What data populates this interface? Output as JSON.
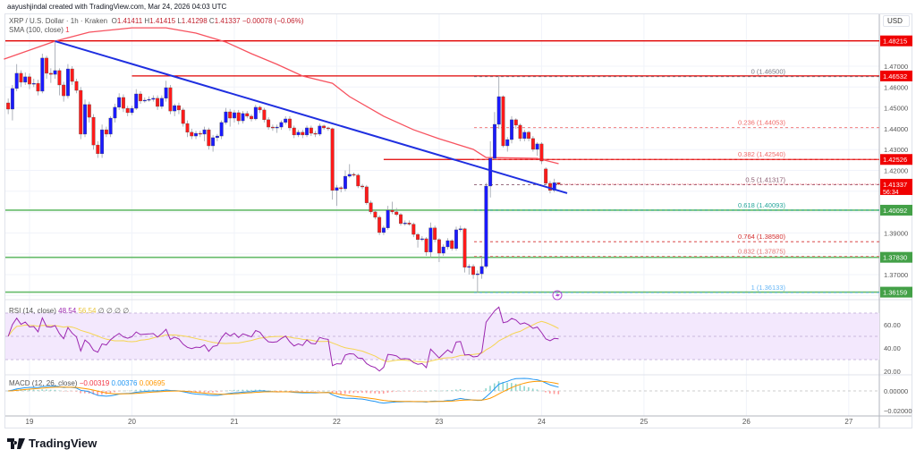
{
  "credit": "aayushjindal created with TradingView.com, Mar 24, 2026 04:03 UTC",
  "legend": {
    "symbol": "XRP / U.S. Dollar · 1h · Kraken",
    "open_label": "O",
    "open": "1.41411",
    "high_label": "H",
    "high": "1.41415",
    "low_label": "L",
    "low": "1.41298",
    "close_label": "C",
    "close": "1.41337",
    "change": "−0.00078 (−0.06%)"
  },
  "sma_legend": {
    "label": "SMA (100, close)",
    "value": "1"
  },
  "rsi_legend": {
    "label": "RSI (14, close)",
    "value": "48.54",
    "ma": "56.54",
    "extra": "∅ ∅ ∅ ∅"
  },
  "macd_legend": {
    "label": "MACD (12, 26, close)",
    "hist": "−0.00319",
    "macd": "0.00376",
    "signal": "0.00695"
  },
  "currency": "USD",
  "brand": "TradingView",
  "countdown": "56:34",
  "colors": {
    "up": "#1a1aff",
    "down": "#ff1a1a",
    "sma": "#f7525f",
    "trend": "#1f2fe0",
    "resistance": "#e00000",
    "support": "#66bb6a",
    "rsi": "#9c27b0",
    "rsi_ma": "#f5d451",
    "macd": "#2196f3",
    "signal": "#ff9800"
  },
  "chart_data": {
    "type": "candlestick",
    "interval": "1h",
    "first_candle": "2026-03-18T19:00",
    "x_ticks": [
      "19",
      "20",
      "21",
      "22",
      "23",
      "24",
      "25",
      "26",
      "27"
    ],
    "y_ticks": [
      "1.47000",
      "1.46000",
      "1.45000",
      "1.44000",
      "1.43000",
      "1.42000",
      "1.39000",
      "1.37000"
    ],
    "rsi_ticks": [
      "60.00",
      "40.00",
      "20.00"
    ],
    "macd_ticks": [
      "0.00000",
      "−0.02000"
    ],
    "ohlc": [
      [
        1.4524,
        1.4545,
        1.447,
        1.4494
      ],
      [
        1.4494,
        1.461,
        1.444,
        1.4593
      ],
      [
        1.4593,
        1.471,
        1.458,
        1.4666
      ],
      [
        1.4666,
        1.468,
        1.46,
        1.4623
      ],
      [
        1.4623,
        1.467,
        1.461,
        1.4649
      ],
      [
        1.4649,
        1.4665,
        1.459,
        1.4614
      ],
      [
        1.4614,
        1.464,
        1.46,
        1.4618
      ],
      [
        1.4618,
        1.4635,
        1.456,
        1.458
      ],
      [
        1.458,
        1.476,
        1.457,
        1.4739
      ],
      [
        1.4739,
        1.475,
        1.464,
        1.4666
      ],
      [
        1.4666,
        1.469,
        1.462,
        1.4661
      ],
      [
        1.4661,
        1.4822,
        1.464,
        1.4679
      ],
      [
        1.4679,
        1.469,
        1.456,
        1.461
      ],
      [
        1.461,
        1.4625,
        1.453,
        1.4558
      ],
      [
        1.4558,
        1.471,
        1.4545,
        1.4687
      ],
      [
        1.4687,
        1.47,
        1.461,
        1.4627
      ],
      [
        1.4627,
        1.464,
        1.457,
        1.4584
      ],
      [
        1.4584,
        1.46,
        1.435,
        1.4374
      ],
      [
        1.4374,
        1.454,
        1.436,
        1.4516
      ],
      [
        1.4516,
        1.453,
        1.443,
        1.4455
      ],
      [
        1.4455,
        1.447,
        1.43,
        1.4322
      ],
      [
        1.4322,
        1.434,
        1.426,
        1.428
      ],
      [
        1.428,
        1.442,
        1.426,
        1.4395
      ],
      [
        1.4395,
        1.441,
        1.436,
        1.4374
      ],
      [
        1.4374,
        1.446,
        1.436,
        1.4451
      ],
      [
        1.4451,
        1.452,
        1.443,
        1.4503
      ],
      [
        1.4503,
        1.457,
        1.449,
        1.455
      ],
      [
        1.455,
        1.4565,
        1.448,
        1.4498
      ],
      [
        1.4498,
        1.451,
        1.446,
        1.4477
      ],
      [
        1.4477,
        1.451,
        1.4465,
        1.4498
      ],
      [
        1.4498,
        1.459,
        1.449,
        1.4567
      ],
      [
        1.4567,
        1.458,
        1.452,
        1.4533
      ],
      [
        1.4533,
        1.455,
        1.4525,
        1.4537
      ],
      [
        1.4537,
        1.4555,
        1.453,
        1.4541
      ],
      [
        1.4541,
        1.456,
        1.453,
        1.4546
      ],
      [
        1.4546,
        1.456,
        1.449,
        1.4507
      ],
      [
        1.4507,
        1.456,
        1.4495,
        1.4546
      ],
      [
        1.4546,
        1.463,
        1.453,
        1.4597
      ],
      [
        1.4597,
        1.461,
        1.447,
        1.4485
      ],
      [
        1.4485,
        1.452,
        1.446,
        1.4511
      ],
      [
        1.4511,
        1.4525,
        1.447,
        1.449
      ],
      [
        1.449,
        1.45,
        1.441,
        1.4425
      ],
      [
        1.4425,
        1.444,
        1.436,
        1.4383
      ],
      [
        1.4383,
        1.44,
        1.435,
        1.4365
      ],
      [
        1.4365,
        1.439,
        1.435,
        1.4378
      ],
      [
        1.4378,
        1.439,
        1.436,
        1.4374
      ],
      [
        1.4374,
        1.441,
        1.434,
        1.4395
      ],
      [
        1.4395,
        1.4405,
        1.43,
        1.4318
      ],
      [
        1.4318,
        1.437,
        1.429,
        1.4357
      ],
      [
        1.4357,
        1.4375,
        1.434,
        1.4365
      ],
      [
        1.4365,
        1.444,
        1.435,
        1.443
      ],
      [
        1.443,
        1.45,
        1.442,
        1.4481
      ],
      [
        1.4481,
        1.4495,
        1.441,
        1.4451
      ],
      [
        1.4451,
        1.449,
        1.443,
        1.4477
      ],
      [
        1.4477,
        1.449,
        1.442,
        1.4438
      ],
      [
        1.4438,
        1.4485,
        1.4425,
        1.4473
      ],
      [
        1.4473,
        1.4485,
        1.445,
        1.446
      ],
      [
        1.446,
        1.447,
        1.4435,
        1.4447
      ],
      [
        1.4447,
        1.4515,
        1.444,
        1.4503
      ],
      [
        1.4503,
        1.451,
        1.4475,
        1.449
      ],
      [
        1.449,
        1.45,
        1.443,
        1.4443
      ],
      [
        1.4443,
        1.4455,
        1.4395,
        1.4408
      ],
      [
        1.4408,
        1.442,
        1.439,
        1.4404
      ],
      [
        1.4404,
        1.442,
        1.438,
        1.4408
      ],
      [
        1.4408,
        1.444,
        1.4395,
        1.443
      ],
      [
        1.443,
        1.446,
        1.442,
        1.4447
      ],
      [
        1.4447,
        1.446,
        1.439,
        1.4404
      ],
      [
        1.4404,
        1.4415,
        1.4355,
        1.437
      ],
      [
        1.437,
        1.4395,
        1.436,
        1.4383
      ],
      [
        1.4383,
        1.4395,
        1.4355,
        1.437
      ],
      [
        1.437,
        1.4415,
        1.436,
        1.4404
      ],
      [
        1.4404,
        1.4415,
        1.4365,
        1.4378
      ],
      [
        1.4378,
        1.439,
        1.436,
        1.4374
      ],
      [
        1.4374,
        1.4425,
        1.4365,
        1.4413
      ],
      [
        1.4413,
        1.442,
        1.4395,
        1.4404
      ],
      [
        1.4404,
        1.441,
        1.439,
        1.44
      ],
      [
        1.44,
        1.4405,
        1.406,
        1.4104
      ],
      [
        1.4104,
        1.413,
        1.403,
        1.4117
      ],
      [
        1.4117,
        1.4125,
        1.4095,
        1.4112
      ],
      [
        1.4112,
        1.42,
        1.41,
        1.4172
      ],
      [
        1.4172,
        1.423,
        1.4165,
        1.4181
      ],
      [
        1.4181,
        1.419,
        1.417,
        1.4177
      ],
      [
        1.4177,
        1.4185,
        1.4115,
        1.4125
      ],
      [
        1.4125,
        1.4135,
        1.411,
        1.4121
      ],
      [
        1.4121,
        1.413,
        1.4035,
        1.4044
      ],
      [
        1.4044,
        1.4055,
        1.399,
        1.4001
      ],
      [
        1.4001,
        1.401,
        1.3965,
        1.3975
      ],
      [
        1.3975,
        1.3985,
        1.389,
        1.3902
      ],
      [
        1.3902,
        1.3935,
        1.389,
        1.3924
      ],
      [
        1.3924,
        1.403,
        1.3915,
        1.4009
      ],
      [
        1.4009,
        1.405,
        1.399,
        1.4001
      ],
      [
        1.4001,
        1.402,
        1.398,
        1.3988
      ],
      [
        1.3988,
        1.3995,
        1.3935,
        1.3945
      ],
      [
        1.3945,
        1.396,
        1.3935,
        1.3948
      ],
      [
        1.3948,
        1.396,
        1.3935,
        1.3942
      ],
      [
        1.3942,
        1.395,
        1.388,
        1.3893
      ],
      [
        1.3893,
        1.39,
        1.383,
        1.3868
      ],
      [
        1.3868,
        1.3885,
        1.386,
        1.3872
      ],
      [
        1.3872,
        1.388,
        1.379,
        1.3808
      ],
      [
        1.3808,
        1.395,
        1.378,
        1.3924
      ],
      [
        1.3924,
        1.3935,
        1.3855,
        1.3868
      ],
      [
        1.3868,
        1.3875,
        1.376,
        1.3803
      ],
      [
        1.3803,
        1.3845,
        1.379,
        1.3833
      ],
      [
        1.3833,
        1.3875,
        1.382,
        1.3863
      ],
      [
        1.3863,
        1.387,
        1.3815,
        1.3825
      ],
      [
        1.3825,
        1.393,
        1.3815,
        1.3915
      ],
      [
        1.3915,
        1.3935,
        1.3905,
        1.392
      ],
      [
        1.392,
        1.3925,
        1.371,
        1.3735
      ],
      [
        1.3735,
        1.375,
        1.37,
        1.3739
      ],
      [
        1.3739,
        1.375,
        1.368,
        1.37
      ],
      [
        1.37,
        1.372,
        1.3613,
        1.3704
      ],
      [
        1.3704,
        1.379,
        1.368,
        1.3739
      ],
      [
        1.3739,
        1.414,
        1.373,
        1.4125
      ],
      [
        1.4125,
        1.434,
        1.407,
        1.4258
      ],
      [
        1.4258,
        1.448,
        1.425,
        1.4421
      ],
      [
        1.4421,
        1.4653,
        1.44,
        1.4554
      ],
      [
        1.4554,
        1.456,
        1.431,
        1.4318
      ],
      [
        1.4318,
        1.436,
        1.429,
        1.4348
      ],
      [
        1.4348,
        1.446,
        1.433,
        1.4443
      ],
      [
        1.4443,
        1.445,
        1.44,
        1.4417
      ],
      [
        1.4417,
        1.4425,
        1.434,
        1.4353
      ],
      [
        1.4353,
        1.4395,
        1.434,
        1.4383
      ],
      [
        1.4383,
        1.439,
        1.434,
        1.4353
      ],
      [
        1.4353,
        1.4365,
        1.429,
        1.4301
      ],
      [
        1.4301,
        1.4335,
        1.427,
        1.4327
      ],
      [
        1.4327,
        1.4335,
        1.423,
        1.4245
      ],
      [
        1.4207,
        1.4215,
        1.413,
        1.4138
      ],
      [
        1.4138,
        1.415,
        1.409,
        1.4104
      ],
      [
        1.4104,
        1.416,
        1.4095,
        1.4141
      ],
      [
        1.41411,
        1.41415,
        1.41298,
        1.41337
      ]
    ],
    "sma100": [
      [
        "2026-03-18T18:00",
        1.4734
      ],
      [
        "2026-03-19T06:00",
        1.482
      ],
      [
        "2026-03-19T14:00",
        1.4863
      ],
      [
        "2026-03-20T00:00",
        1.4884
      ],
      [
        "2026-03-20T08:00",
        1.4884
      ],
      [
        "2026-03-20T15:00",
        1.4859
      ],
      [
        "2026-03-20T22:00",
        1.4816
      ],
      [
        "2026-03-21T04:00",
        1.476
      ],
      [
        "2026-03-21T10:00",
        1.4709
      ],
      [
        "2026-03-21T16:00",
        1.4653
      ],
      [
        "2026-03-21T23:00",
        1.4618
      ],
      [
        "2026-03-22T03:00",
        1.4554
      ],
      [
        "2026-03-22T11:00",
        1.446
      ],
      [
        "2026-03-22T18:00",
        1.4395
      ],
      [
        "2026-03-23T00:00",
        1.4352
      ],
      [
        "2026-03-23T08:00",
        1.4301
      ],
      [
        "2026-03-23T11:00",
        1.4262
      ],
      [
        "2026-03-23T23:00",
        1.4258
      ],
      [
        "2026-03-24T04:00",
        1.4232
      ]
    ],
    "trendline": [
      [
        "2026-03-19T06:00",
        1.482
      ],
      [
        "2026-03-24T06:00",
        1.4091
      ]
    ],
    "levels": [
      {
        "price": 1.48215,
        "label": "1.48215",
        "kind": "resistance",
        "from": "start"
      },
      {
        "price": 1.46532,
        "label": "1.46532",
        "kind": "resistance",
        "from": "2026-03-20T00:00"
      },
      {
        "price": 1.42526,
        "label": "1.42526",
        "kind": "resistance",
        "from": "2026-03-22T11:00"
      },
      {
        "price": 1.40092,
        "label": "1.40092",
        "kind": "support",
        "from": "start"
      },
      {
        "price": 1.3783,
        "label": "1.37830",
        "kind": "support",
        "from": "start"
      },
      {
        "price": 1.36159,
        "label": "1.36159",
        "kind": "support",
        "from": "start"
      }
    ],
    "last_price": {
      "price": 1.41337,
      "label": "1.41337"
    },
    "fibonacci": [
      {
        "ratio": "0",
        "price": 1.465,
        "label": "0 (1.46500)",
        "color": "#787b86"
      },
      {
        "ratio": "0.236",
        "price": 1.44053,
        "label": "0.236 (1.44053)",
        "color": "#f06a6a"
      },
      {
        "ratio": "0.382",
        "price": 1.4254,
        "label": "0.382 (1.42540)",
        "color": "#f06a6a"
      },
      {
        "ratio": "0.5",
        "price": 1.41317,
        "label": "0.5 (1.41317)",
        "color": "#8a5a6e"
      },
      {
        "ratio": "0.618",
        "price": 1.40093,
        "label": "0.618 (1.40093)",
        "color": "#26a69a"
      },
      {
        "ratio": "0.764",
        "price": 1.3858,
        "label": "0.764 (1.38580)",
        "color": "#d32f2f"
      },
      {
        "ratio": "0.832",
        "price": 1.37875,
        "label": "0.832 (1.37875)",
        "color": "#e57373"
      },
      {
        "ratio": "1",
        "price": 1.36133,
        "label": "1 (1.36133)",
        "color": "#64b5f6"
      }
    ],
    "grid": true
  }
}
